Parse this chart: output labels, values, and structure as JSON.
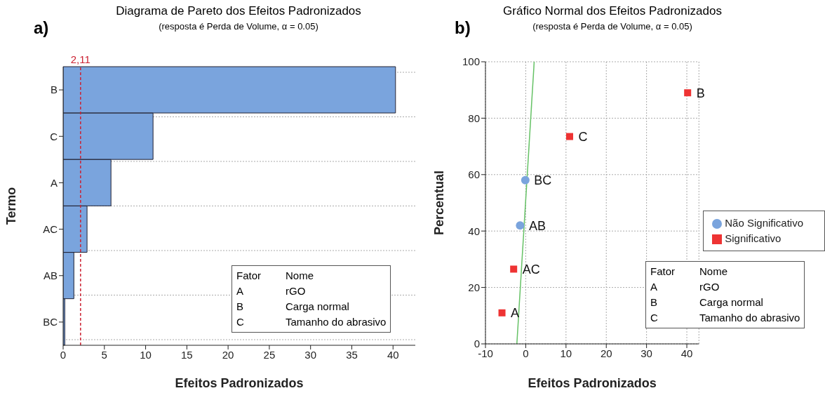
{
  "chart_data": [
    {
      "type": "bar",
      "orientation": "horizontal",
      "title": "Diagrama de Pareto dos Efeitos Padronizados",
      "subtitle": "(resposta é Perda de Volume, α = 0.05)",
      "xlabel": "Efeitos Padronizados",
      "ylabel": "Termo",
      "categories": [
        "B",
        "C",
        "A",
        "AC",
        "AB",
        "BC"
      ],
      "values": [
        40.3,
        10.9,
        5.8,
        2.9,
        1.3,
        0.2
      ],
      "color": "#7aa4dd",
      "xlim": [
        0,
        42.7
      ],
      "xticks": [
        0,
        5,
        10,
        15,
        20,
        25,
        30,
        35,
        40
      ],
      "grid": "y",
      "ref_lines": [
        {
          "axis": "x",
          "value": 2.11,
          "label": "2,11",
          "color": "#cc2233",
          "line_style": "dashed"
        }
      ],
      "annotations": [
        "a)",
        "Fator",
        "Nome",
        "A",
        "rGO",
        "B",
        "Carga normal",
        "C",
        "Tamanho do abrasivo"
      ]
    },
    {
      "type": "scatter",
      "title": "Gráfico Normal dos Efeitos Padronizados",
      "subtitle": "(resposta é Perda de Volume, α = 0.05)",
      "xlabel": "Efeitos Padronizados",
      "ylabel": "Percentual",
      "xlim": [
        -10,
        43
      ],
      "xticks": [
        -10,
        0,
        10,
        20,
        30,
        40
      ],
      "ylim": [
        0,
        100
      ],
      "yticks": [
        0,
        20,
        40,
        60,
        80,
        100
      ],
      "grid": true,
      "legend": "right",
      "series": [
        {
          "name": "Não Significativo",
          "color": "#7aa4dd",
          "marker": "circle",
          "x": [
            -1.4,
            -0.1
          ],
          "values": [
            42,
            58
          ],
          "value_labels": [
            "AB",
            "BC"
          ]
        },
        {
          "name": "Significativo",
          "color": "#ee3333",
          "marker": "square",
          "x": [
            -5.9,
            -3,
            10.9,
            40.2
          ],
          "values": [
            11,
            26.5,
            73.5,
            89
          ],
          "value_labels": [
            "A",
            "AC",
            "C",
            "B"
          ]
        },
        {
          "type": "line",
          "color": "#66c266",
          "x": [
            -2.2,
            2.1
          ],
          "values": [
            0,
            100
          ]
        }
      ],
      "annotations": [
        "b)",
        "Fator",
        "Nome",
        "A",
        "rGO",
        "B",
        "Carga normal",
        "C",
        "Tamanho do abrasivo"
      ]
    }
  ]
}
